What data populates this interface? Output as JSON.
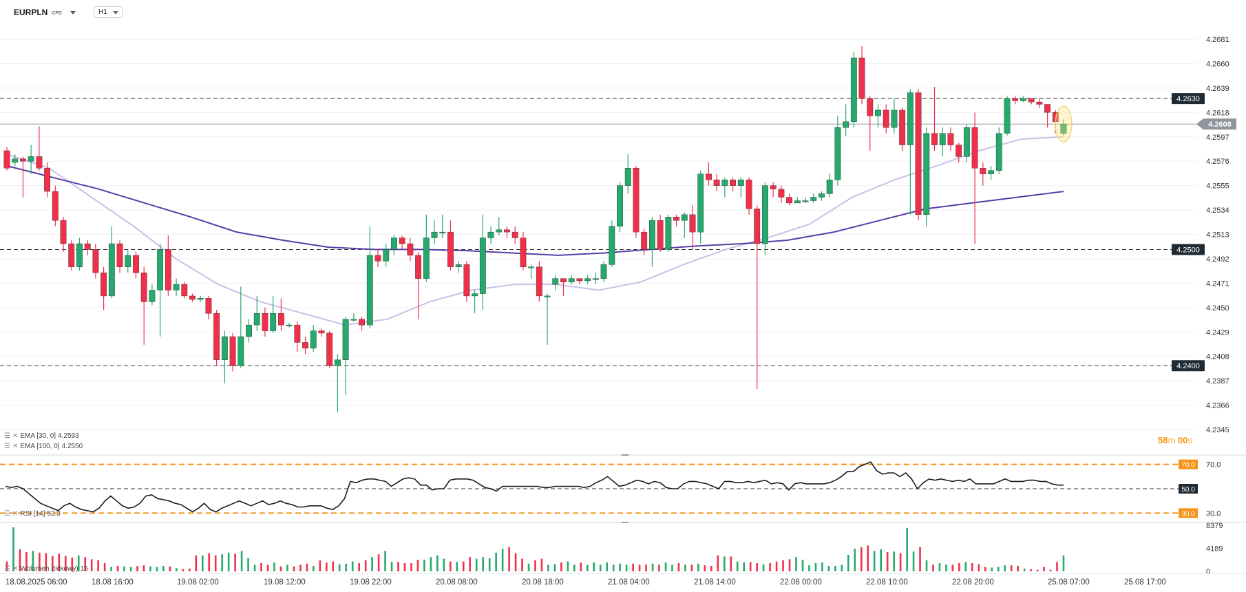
{
  "toolbar": {
    "symbol": "EURPLN",
    "symbol_type": "CFD",
    "timeframe": "H1"
  },
  "colors": {
    "bull": "#26a96c",
    "bear": "#f0304a",
    "ema30": "#c9c0e6",
    "ema100": "#5a3ba8",
    "rsi": "#1a1a1a",
    "orange": "#f7931a",
    "price_tag": "#8e959c",
    "label_dark": "#1f2a33"
  },
  "indicators": {
    "ema30": {
      "label": "EMA [30, 0]",
      "value": "4.2593"
    },
    "ema100": {
      "label": "EMA [100, 0]",
      "value": "4.2550"
    },
    "rsi": {
      "label": "RSI [14]",
      "value": "53.3"
    },
    "volume": {
      "label": "Wolumen (tickowy)",
      "value": "15"
    }
  },
  "countdown": {
    "minutes": "58",
    "m": "m",
    "seconds": "00",
    "s": "s"
  },
  "chart_data": [
    {
      "type": "candlestick",
      "title": "EURPLN H1",
      "y_ticks": [
        "4.2681",
        "4.2660",
        "4.2639",
        "4.2618",
        "4.2597",
        "4.2576",
        "4.2555",
        "4.2534",
        "4.2513",
        "4.2492",
        "4.2471",
        "4.2450",
        "4.2429",
        "4.2408",
        "4.2387",
        "4.2366",
        "4.2345"
      ],
      "ylim": [
        4.2345,
        4.2681
      ],
      "x_ticks": [
        "18.08.2025  06:00",
        "18.08  16:00",
        "19.08  02:00",
        "19.08  12:00",
        "19.08  22:00",
        "20.08  08:00",
        "20.08  18:00",
        "21.08  04:00",
        "21.08  14:00",
        "22.08  00:00",
        "22.08  10:00",
        "22.08  20:00",
        "25.08  07:00",
        "25.08  17:00"
      ],
      "horizontal_levels": [
        {
          "value": 4.263,
          "label": "4.2630"
        },
        {
          "value": 4.25,
          "label": "4.2500"
        },
        {
          "value": 4.24,
          "label": "4.2400"
        }
      ],
      "current_price": {
        "value": 4.2608,
        "label": "4.2608"
      },
      "candles": [
        [
          4.2585,
          4.257,
          4.2588,
          4.2568
        ],
        [
          4.2575,
          4.2578,
          4.2582,
          4.2572
        ],
        [
          4.2578,
          4.2576,
          4.258,
          4.2545
        ],
        [
          4.2576,
          4.258,
          4.259,
          4.2565
        ],
        [
          4.258,
          4.257,
          4.2606,
          4.2568
        ],
        [
          4.257,
          4.255,
          4.2575,
          4.2545
        ],
        [
          4.255,
          4.2525,
          4.2555,
          4.252
        ],
        [
          4.2525,
          4.2505,
          4.2528,
          4.2498
        ],
        [
          4.2505,
          4.2485,
          4.2508,
          4.2482
        ],
        [
          4.2485,
          4.2505,
          4.251,
          4.2482
        ],
        [
          4.2505,
          4.25,
          4.2508,
          4.2495
        ],
        [
          4.25,
          4.248,
          4.2505,
          4.2475
        ],
        [
          4.248,
          4.246,
          4.2485,
          4.2448
        ],
        [
          4.246,
          4.2505,
          4.252,
          4.2458
        ],
        [
          4.2505,
          4.2485,
          4.2508,
          4.248
        ],
        [
          4.2485,
          4.2495,
          4.25,
          4.248
        ],
        [
          4.2495,
          4.248,
          4.2498,
          4.2475
        ],
        [
          4.248,
          4.2455,
          4.2485,
          4.2418
        ],
        [
          4.2455,
          4.2465,
          4.247,
          4.2452
        ],
        [
          4.2465,
          4.25,
          4.2505,
          4.2425
        ],
        [
          4.25,
          4.2465,
          4.2512,
          4.246
        ],
        [
          4.2465,
          4.247,
          4.2475,
          4.246
        ],
        [
          4.247,
          4.246,
          4.2472,
          4.2458
        ],
        [
          4.246,
          4.2457,
          4.2462,
          4.2455
        ],
        [
          4.2457,
          4.2458,
          4.246,
          4.2455
        ],
        [
          4.2458,
          4.2445,
          4.246,
          4.244
        ],
        [
          4.2445,
          4.2405,
          4.2448,
          4.24
        ],
        [
          4.2405,
          4.2425,
          4.243,
          4.2385
        ],
        [
          4.2425,
          4.24,
          4.2428,
          4.2395
        ],
        [
          4.24,
          4.2425,
          4.2468,
          4.2398
        ],
        [
          4.2425,
          4.2435,
          4.244,
          4.242
        ],
        [
          4.2435,
          4.2445,
          4.246,
          4.243
        ],
        [
          4.2445,
          4.243,
          4.245,
          4.2425
        ],
        [
          4.243,
          4.2445,
          4.246,
          4.2428
        ],
        [
          4.2445,
          4.2435,
          4.2458,
          4.243
        ],
        [
          4.2435,
          4.2435,
          4.2437,
          4.2433
        ],
        [
          4.2435,
          4.242,
          4.2438,
          4.2412
        ],
        [
          4.242,
          4.2415,
          4.2425,
          4.241
        ],
        [
          4.2415,
          4.243,
          4.2435,
          4.2412
        ],
        [
          4.243,
          4.2428,
          4.2432,
          4.2425
        ],
        [
          4.2428,
          4.24,
          4.243,
          4.2398
        ],
        [
          4.24,
          4.2405,
          4.241,
          4.236
        ],
        [
          4.2405,
          4.244,
          4.2442,
          4.2375
        ],
        [
          4.244,
          4.244,
          4.2445,
          4.2438
        ],
        [
          4.244,
          4.2435,
          4.2442,
          4.243
        ],
        [
          4.2435,
          4.2495,
          4.252,
          4.2432
        ],
        [
          4.2495,
          4.249,
          4.25,
          4.2485
        ],
        [
          4.249,
          4.25,
          4.2505,
          4.2485
        ],
        [
          4.25,
          4.251,
          4.2512,
          4.2495
        ],
        [
          4.251,
          4.2505,
          4.2512,
          4.25
        ],
        [
          4.2505,
          4.2495,
          4.251,
          4.249
        ],
        [
          4.2495,
          4.2475,
          4.2498,
          4.244
        ],
        [
          4.2475,
          4.251,
          4.253,
          4.2472
        ],
        [
          4.251,
          4.2515,
          4.2525,
          4.2505
        ],
        [
          4.2515,
          4.2515,
          4.253,
          4.251
        ],
        [
          4.2515,
          4.2485,
          4.2525,
          4.2482
        ],
        [
          4.2485,
          4.2487,
          4.249,
          4.248
        ],
        [
          4.2487,
          4.246,
          4.249,
          4.2455
        ],
        [
          4.246,
          4.2462,
          4.2465,
          4.2445
        ],
        [
          4.2462,
          4.251,
          4.253,
          4.2448
        ],
        [
          4.251,
          4.2515,
          4.252,
          4.2505
        ],
        [
          4.2515,
          4.2517,
          4.2528,
          4.2512
        ],
        [
          4.2517,
          4.2515,
          4.252,
          4.251
        ],
        [
          4.2515,
          4.251,
          4.252,
          4.2505
        ],
        [
          4.251,
          4.2485,
          4.2515,
          4.2482
        ],
        [
          4.2485,
          4.2485,
          4.2487,
          4.2475
        ],
        [
          4.2485,
          4.246,
          4.249,
          4.2455
        ],
        [
          4.246,
          4.246,
          4.2462,
          4.2418
        ],
        [
          4.247,
          4.2475,
          4.2478,
          4.2465
        ],
        [
          4.2475,
          4.2472,
          4.2475,
          4.246
        ],
        [
          4.2472,
          4.2475,
          4.2478,
          4.247
        ],
        [
          4.2475,
          4.2473,
          4.2475,
          4.247
        ],
        [
          4.2473,
          4.2475,
          4.2478,
          4.247
        ],
        [
          4.2475,
          4.2475,
          4.248,
          4.247
        ],
        [
          4.2475,
          4.2487,
          4.249,
          4.2472
        ],
        [
          4.2487,
          4.252,
          4.2525,
          4.2485
        ],
        [
          4.252,
          4.2555,
          4.2558,
          4.2515
        ],
        [
          4.2555,
          4.257,
          4.2582,
          4.2548
        ],
        [
          4.257,
          4.2515,
          4.2572,
          4.251
        ],
        [
          4.2515,
          4.25,
          4.2518,
          4.2495
        ],
        [
          4.25,
          4.2525,
          4.2528,
          4.2485
        ],
        [
          4.2525,
          4.25,
          4.253,
          4.2498
        ],
        [
          4.25,
          4.2528,
          4.253,
          4.2498
        ],
        [
          4.2528,
          4.2525,
          4.253,
          4.252
        ],
        [
          4.2525,
          4.253,
          4.2532,
          4.251
        ],
        [
          4.253,
          4.2515,
          4.2538,
          4.25
        ],
        [
          4.2515,
          4.2565,
          4.2568,
          4.2505
        ],
        [
          4.2565,
          4.256,
          4.2575,
          4.2555
        ],
        [
          4.256,
          4.2555,
          4.2565,
          4.255
        ],
        [
          4.2555,
          4.256,
          4.2562,
          4.2545
        ],
        [
          4.256,
          4.2555,
          4.2562,
          4.255
        ],
        [
          4.2555,
          4.256,
          4.2562,
          4.2545
        ],
        [
          4.256,
          4.2535,
          4.2562,
          4.253
        ],
        [
          4.2535,
          4.2505,
          4.2538,
          4.238
        ],
        [
          4.2505,
          4.2555,
          4.2558,
          4.2495
        ],
        [
          4.2555,
          4.2552,
          4.2558,
          4.2545
        ],
        [
          4.2552,
          4.2545,
          4.2555,
          4.254
        ],
        [
          4.2545,
          4.254,
          4.2548,
          4.2538
        ],
        [
          4.254,
          4.2542,
          4.2545,
          4.254
        ],
        [
          4.2542,
          4.2542,
          4.2545,
          4.254
        ],
        [
          4.2542,
          4.2545,
          4.2548,
          4.254
        ],
        [
          4.2545,
          4.2548,
          4.255,
          4.2542
        ],
        [
          4.2548,
          4.256,
          4.2565,
          4.2545
        ],
        [
          4.256,
          4.2605,
          4.2615,
          4.2555
        ],
        [
          4.2605,
          4.261,
          4.2625,
          4.2598
        ],
        [
          4.261,
          4.2665,
          4.267,
          4.2605
        ],
        [
          4.2665,
          4.263,
          4.2675,
          4.2625
        ],
        [
          4.263,
          4.2615,
          4.2632,
          4.2585
        ],
        [
          4.2615,
          4.262,
          4.2625,
          4.2605
        ],
        [
          4.262,
          4.2605,
          4.2625,
          4.26
        ],
        [
          4.2605,
          4.262,
          4.263,
          4.26
        ],
        [
          4.262,
          4.259,
          4.2622,
          4.2585
        ],
        [
          4.259,
          4.2635,
          4.2638,
          4.253
        ],
        [
          4.2635,
          4.253,
          4.2638,
          4.2525
        ],
        [
          4.253,
          4.26,
          4.2605,
          4.252
        ],
        [
          4.26,
          4.259,
          4.264,
          4.2585
        ],
        [
          4.259,
          4.26,
          4.2605,
          4.258
        ],
        [
          4.26,
          4.259,
          4.2605,
          4.2585
        ],
        [
          4.259,
          4.258,
          4.2592,
          4.2575
        ],
        [
          4.258,
          4.2605,
          4.2608,
          4.2575
        ],
        [
          4.2605,
          4.257,
          4.2618,
          4.2505
        ],
        [
          4.257,
          4.2565,
          4.2575,
          4.2555
        ],
        [
          4.2565,
          4.2568,
          4.2572,
          4.256
        ],
        [
          4.2568,
          4.26,
          4.2605,
          4.2565
        ],
        [
          4.26,
          4.263,
          4.2632,
          4.2598
        ],
        [
          4.263,
          4.2628,
          4.2632,
          4.2625
        ],
        [
          4.2628,
          4.263,
          4.2632,
          4.2627
        ],
        [
          4.263,
          4.2627,
          4.263,
          4.2625
        ],
        [
          4.2627,
          4.2625,
          4.263,
          4.2622
        ],
        [
          4.2625,
          4.2618,
          4.2625,
          4.2605
        ],
        [
          4.2618,
          4.261,
          4.262,
          4.26
        ],
        [
          4.26,
          4.2608,
          4.2612,
          4.2598
        ]
      ],
      "ema30": [
        4.2582,
        4.257,
        4.2545,
        4.252,
        4.2492,
        4.247,
        4.2455,
        4.2445,
        4.2435,
        4.244,
        4.2455,
        4.2465,
        4.247,
        4.247,
        4.2465,
        4.2472,
        4.2487,
        4.25,
        4.251,
        4.2522,
        4.2545,
        4.256,
        4.2572,
        4.2585,
        4.2595,
        4.2597
      ],
      "ema100": [
        4.2572,
        4.2562,
        4.2552,
        4.254,
        4.2528,
        4.2515,
        4.2508,
        4.2502,
        4.25,
        4.25,
        4.2499,
        4.2497,
        4.2495,
        4.2497,
        4.25,
        4.2503,
        4.2505,
        4.2508,
        4.2515,
        4.2525,
        4.2535,
        4.254,
        4.2545,
        4.255
      ]
    },
    {
      "type": "line",
      "title": "RSI [14]",
      "y_ticks": [
        "70.0",
        "30.0"
      ],
      "ylim": [
        24,
        76
      ],
      "levels": [
        {
          "value": 70,
          "label": "70.0"
        },
        {
          "value": 50,
          "label": "50.0"
        },
        {
          "value": 30,
          "label": "30.0"
        }
      ],
      "values": [
        52,
        51,
        52,
        50,
        46,
        42,
        38,
        36,
        34,
        32,
        36,
        38,
        35,
        33,
        32,
        31,
        34,
        40,
        44,
        40,
        36,
        34,
        35,
        38,
        44,
        45,
        42,
        41,
        40,
        38,
        37,
        34,
        31,
        34,
        38,
        33,
        31,
        34,
        36,
        38,
        40,
        38,
        36,
        38,
        40,
        37,
        38,
        40,
        38,
        37,
        35,
        35,
        36,
        36,
        36,
        34,
        33,
        36,
        42,
        56,
        55,
        57,
        58,
        58,
        57,
        56,
        52,
        55,
        58,
        59,
        58,
        53,
        53,
        49,
        50,
        50,
        57,
        58,
        58,
        58,
        57,
        54,
        51,
        50,
        48,
        52,
        52,
        52,
        52,
        52,
        52,
        52,
        51,
        51,
        52,
        52,
        52,
        52,
        52,
        51,
        52,
        55,
        57,
        60,
        56,
        52,
        53,
        55,
        57,
        56,
        54,
        56,
        55,
        51,
        50,
        50,
        54,
        56,
        56,
        55,
        54,
        52,
        50,
        56,
        56,
        55,
        55,
        56,
        55,
        56,
        57,
        54,
        55,
        54,
        49,
        54,
        55,
        54,
        54,
        54,
        54,
        55,
        57,
        60,
        64,
        64,
        68,
        70,
        72,
        65,
        62,
        63,
        63,
        60,
        63,
        58,
        50,
        55,
        58,
        57,
        58,
        57,
        56,
        57,
        56,
        58,
        54,
        54,
        54,
        54,
        56,
        58,
        56,
        56,
        56,
        57,
        57,
        56,
        56,
        54,
        53,
        53
      ]
    },
    {
      "type": "bar",
      "title": "Wolumen (tickowy)",
      "y_ticks": [
        "8379",
        "4189",
        "0"
      ],
      "ylim": [
        0,
        8379
      ],
      "values": [
        1800,
        8000,
        4000,
        3500,
        3700,
        3400,
        3300,
        2800,
        3200,
        2800,
        2500,
        2900,
        2600,
        2200,
        2000,
        1500,
        800,
        1000,
        900,
        800,
        1000,
        1100,
        900,
        800,
        1000,
        900,
        600,
        400,
        500,
        2900,
        2900,
        3300,
        2900,
        3100,
        3400,
        3200,
        3700,
        2400,
        1200,
        1500,
        1200,
        1600,
        900,
        1200,
        900,
        1200,
        1400,
        1000,
        2000,
        1600,
        1800,
        1300,
        1400,
        1800,
        1500,
        2000,
        2600,
        3100,
        3700,
        1700,
        1700,
        1500,
        1500,
        2100,
        2100,
        2600,
        2900,
        2300,
        1800,
        1700,
        1800,
        2600,
        2300,
        2600,
        2400,
        3400,
        4100,
        4400,
        3300,
        2300,
        1400,
        2000,
        2300,
        1200,
        1300,
        1600,
        1800,
        1200,
        1600,
        1200,
        1600,
        1200,
        1600,
        1200,
        1400,
        1200,
        1400,
        1200,
        1200,
        1400,
        1200,
        1600,
        1200,
        1500,
        1200,
        1200,
        1400,
        1100,
        1000,
        2900,
        2700,
        2700,
        1800,
        1600,
        1700,
        1500,
        1300,
        1500,
        1800,
        2000,
        2200,
        2600,
        2100,
        1100,
        1500,
        1600,
        1000,
        1000,
        1200,
        3000,
        4100,
        4400,
        4700,
        3700,
        4000,
        3500,
        3600,
        3300,
        7900,
        3600,
        4400,
        2000,
        1200,
        1500,
        1200,
        1200,
        1500,
        1700,
        1500,
        1300,
        800,
        700,
        800,
        1100,
        1100,
        1000,
        500,
        400,
        300,
        800,
        300,
        1700,
        2900
      ]
    }
  ]
}
